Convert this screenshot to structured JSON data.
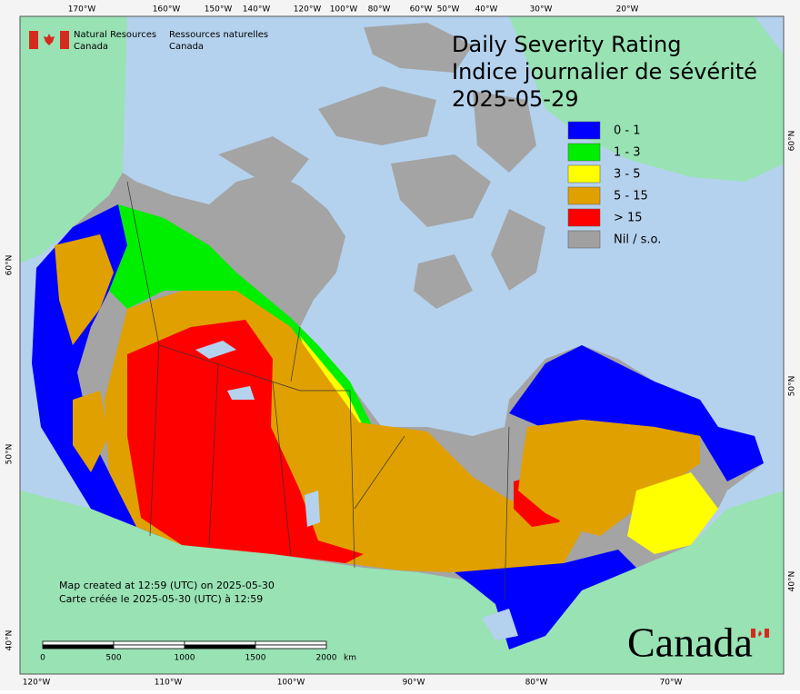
{
  "agency": {
    "en": [
      "Natural Resources",
      "Canada"
    ],
    "fr": [
      "Ressources naturelles",
      "Canada"
    ]
  },
  "title": [
    "Daily Severity Rating",
    "Indice journalier de sévérité",
    "2025-05-29"
  ],
  "legend": [
    {
      "label": "0 - 1",
      "color": "#0000ff"
    },
    {
      "label": "1 - 3",
      "color": "#00ee00"
    },
    {
      "label": "3 - 5",
      "color": "#ffff00"
    },
    {
      "label": "5 - 15",
      "color": "#e0a000"
    },
    {
      "label": "> 15",
      "color": "#ff0000"
    },
    {
      "label": "Nil / s.o.",
      "color": "#a0a0a0"
    }
  ],
  "notes": [
    "Map created at 12:59 (UTC) on 2025-05-30",
    "Carte créée le 2025-05-30 (UTC) à 12:59"
  ],
  "scale_bar": {
    "labels": [
      "0",
      "500",
      "1000",
      "1500",
      "2000"
    ],
    "unit": "km"
  },
  "graticule": {
    "top": [
      "170°W",
      "160°W",
      "150°W",
      "140°W",
      "120°W",
      "100°W",
      "80°W",
      "60°W",
      "50°W",
      "40°W",
      "30°W",
      "20°W"
    ],
    "bottom": [
      "120°W",
      "110°W",
      "100°W",
      "90°W",
      "80°W",
      "70°W"
    ],
    "left": [
      "60°N",
      "50°N",
      "40°N"
    ],
    "right": [
      "60°N",
      "50°N",
      "40°N"
    ]
  },
  "wordmark": "Canada"
}
